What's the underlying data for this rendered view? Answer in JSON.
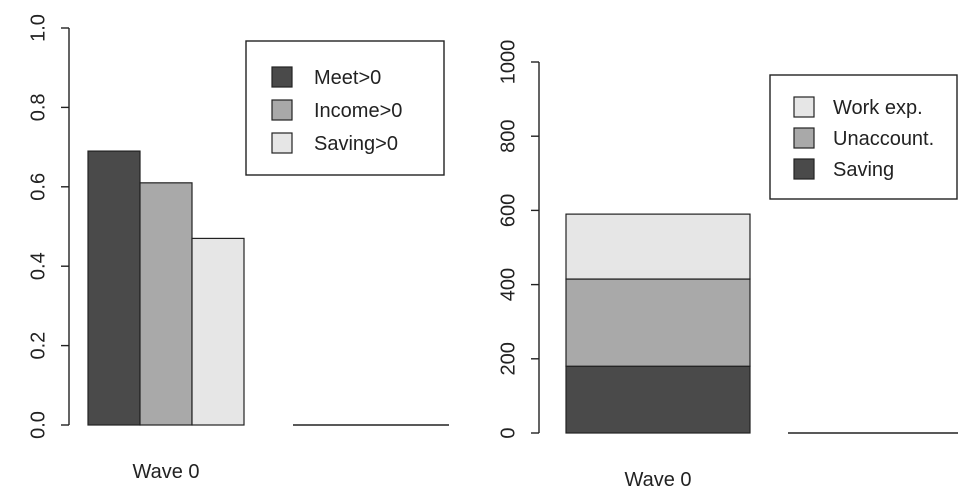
{
  "chart_data": [
    {
      "type": "bar",
      "categories": [
        "Wave 0",
        ""
      ],
      "series": [
        {
          "name": "Meet>0",
          "values": [
            0.69,
            0
          ],
          "color": "#4a4a4a"
        },
        {
          "name": "Income>0",
          "values": [
            0.61,
            0
          ],
          "color": "#a9a9a9"
        },
        {
          "name": "Saving>0",
          "values": [
            0.47,
            0
          ],
          "color": "#e6e6e6"
        }
      ],
      "ylim": [
        0,
        1.0
      ],
      "yticks": [
        "0.0",
        "0.2",
        "0.4",
        "0.6",
        "0.8",
        "1.0"
      ],
      "ytick_values": [
        0,
        0.2,
        0.4,
        0.6,
        0.8,
        1.0
      ],
      "legend": [
        "Meet>0",
        "Income>0",
        "Saving>0"
      ],
      "legend_position": "top-right"
    },
    {
      "type": "bar",
      "stacked": true,
      "categories": [
        "Wave 0",
        ""
      ],
      "series": [
        {
          "name": "Saving",
          "values": [
            180,
            0
          ],
          "color": "#4a4a4a"
        },
        {
          "name": "Unaccount.",
          "values": [
            235,
            0
          ],
          "color": "#a9a9a9"
        },
        {
          "name": "Work exp.",
          "values": [
            175,
            0
          ],
          "color": "#e6e6e6"
        }
      ],
      "ylim": [
        0,
        1000
      ],
      "yticks": [
        "0",
        "200",
        "400",
        "600",
        "800",
        "1000"
      ],
      "ytick_values": [
        0,
        200,
        400,
        600,
        800,
        1000
      ],
      "legend": [
        "Work exp.",
        "Unaccount.",
        "Saving"
      ],
      "legend_position": "top-right"
    }
  ]
}
